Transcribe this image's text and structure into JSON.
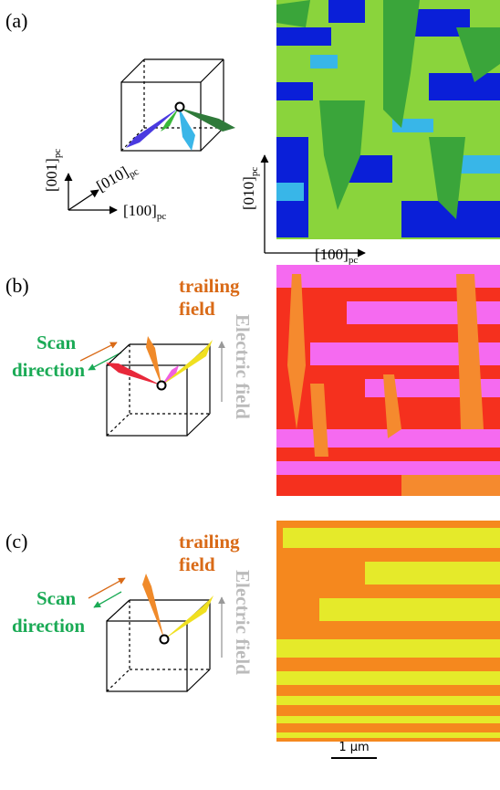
{
  "panel_a": {
    "label": "(a)",
    "cube_axes": [
      {
        "text": "[001]",
        "sub": "pc"
      },
      {
        "text": "[010]",
        "sub": "pc"
      },
      {
        "text": "[100]",
        "sub": "pc"
      }
    ],
    "map_axes": [
      {
        "text": "[010]",
        "sub": "pc"
      },
      {
        "text": "[100]",
        "sub": "pc"
      }
    ]
  },
  "panel_b": {
    "label": "(b)",
    "trailing": [
      "trailing",
      "field"
    ],
    "scan": [
      "Scan",
      "direction"
    ],
    "electric": "Electric field"
  },
  "panel_c": {
    "label": "(c)",
    "trailing": [
      "trailing",
      "field"
    ],
    "scan": [
      "Scan",
      "direction"
    ],
    "electric": "Electric field"
  },
  "scale_bar": "1 μm"
}
